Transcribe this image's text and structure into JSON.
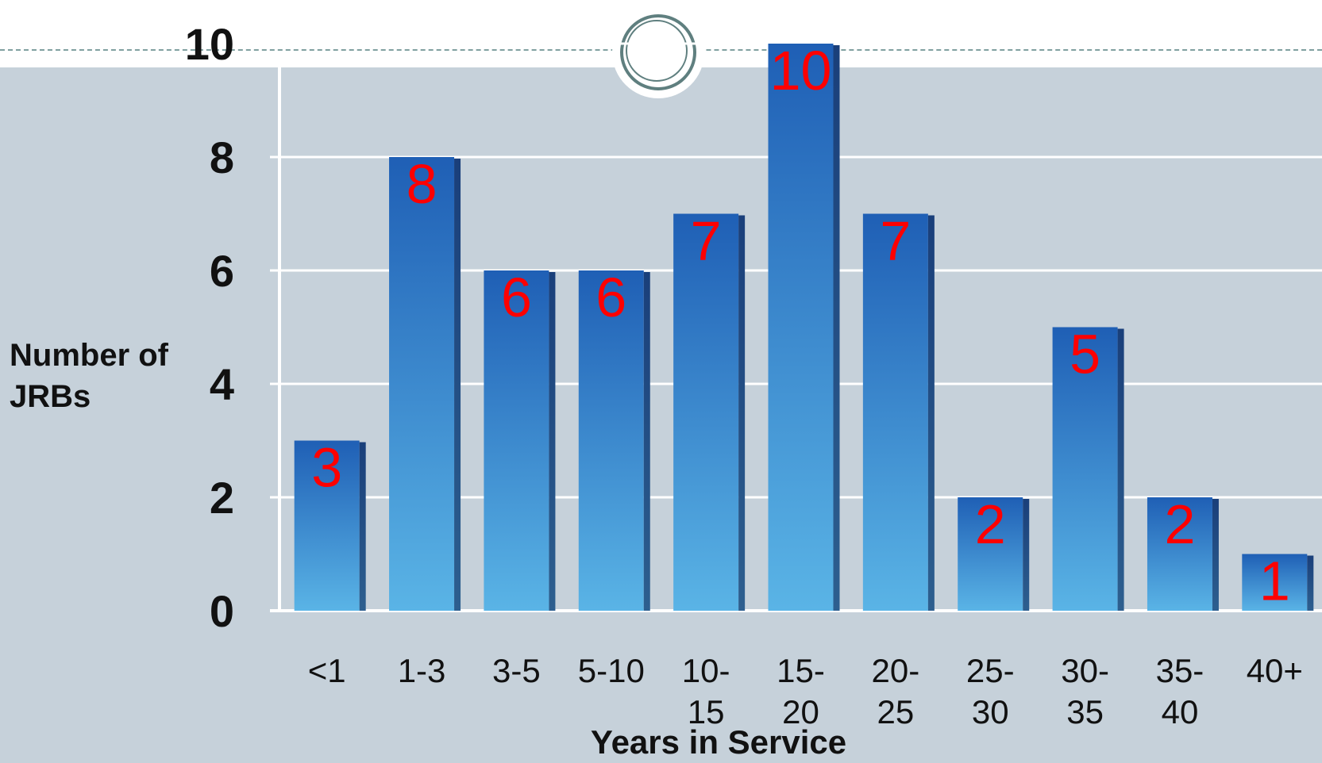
{
  "chart_data": {
    "type": "bar",
    "categories": [
      "<1",
      "1-3",
      "3-5",
      "5-10",
      "10-15",
      "15-20",
      "20-25",
      "25-30",
      "30-35",
      "35-40",
      "40+"
    ],
    "category_lines": [
      [
        "<1"
      ],
      [
        "1-3"
      ],
      [
        "3-5"
      ],
      [
        "5-10"
      ],
      [
        "10-",
        "15"
      ],
      [
        "15-",
        "20"
      ],
      [
        "20-",
        "25"
      ],
      [
        "25-",
        "30"
      ],
      [
        "30-",
        "35"
      ],
      [
        "35-",
        "40"
      ],
      [
        "40+"
      ]
    ],
    "values": [
      3,
      8,
      6,
      6,
      7,
      10,
      7,
      2,
      5,
      2,
      1
    ],
    "xlabel": "Years in Service",
    "ylabel": "Number of JRBs",
    "ylabel_lines": [
      "Number of",
      "JRBs"
    ],
    "ylim": [
      0,
      10
    ],
    "yticks": [
      0,
      2,
      4,
      6,
      8,
      10
    ],
    "grid": true,
    "data_labels": true
  },
  "colors": {
    "bar_light": "#5ab4e6",
    "bar_dark": "#1f5fb5",
    "bar_side": "#1a3f7a",
    "label": "#ff0000",
    "grid": "#ffffff",
    "panel": "#c6d1da"
  }
}
